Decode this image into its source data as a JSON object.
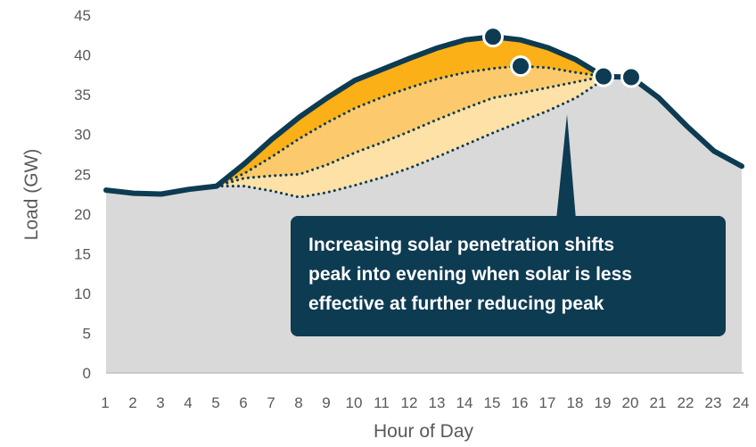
{
  "chart_data": {
    "type": "area",
    "xlabel": "Hour of Day",
    "ylabel": "Load (GW)",
    "ylim": [
      0,
      45
    ],
    "yticks": [
      0,
      5,
      10,
      15,
      20,
      25,
      30,
      35,
      40,
      45
    ],
    "x": [
      1,
      2,
      3,
      4,
      5,
      6,
      7,
      8,
      9,
      10,
      11,
      12,
      13,
      14,
      15,
      16,
      17,
      18,
      19,
      20,
      21,
      22,
      23,
      24
    ],
    "series": [
      {
        "style": "solid-outline",
        "values": [
          23.0,
          22.6,
          22.5,
          23.1,
          23.5,
          26.3,
          29.4,
          32.2,
          34.6,
          36.8,
          38.2,
          39.6,
          40.9,
          41.9,
          42.3,
          41.9,
          40.9,
          39.4,
          37.3,
          37.2,
          34.6,
          31.1,
          27.9,
          26.0
        ]
      },
      {
        "style": "dotted",
        "x": [
          5,
          6,
          7,
          8,
          9,
          10,
          11,
          12,
          13,
          14,
          15,
          16,
          17,
          18,
          19
        ],
        "values": [
          23.5,
          25.1,
          27.2,
          29.5,
          31.5,
          33.3,
          34.7,
          35.9,
          37.0,
          37.8,
          38.3,
          38.6,
          38.4,
          37.8,
          37.3
        ]
      },
      {
        "style": "dotted",
        "x": [
          5,
          6,
          7,
          8,
          9,
          10,
          11,
          12,
          13,
          14,
          15,
          16,
          17,
          18,
          19
        ],
        "values": [
          23.5,
          24.5,
          24.8,
          25.0,
          26.2,
          27.7,
          29.0,
          30.4,
          31.9,
          33.3,
          34.6,
          35.2,
          35.9,
          36.6,
          37.3
        ]
      },
      {
        "style": "dotted",
        "x": [
          5,
          6,
          7,
          8,
          9,
          10,
          11,
          12,
          13,
          14,
          15,
          16,
          17,
          18,
          19
        ],
        "values": [
          23.5,
          23.5,
          22.9,
          22.1,
          22.7,
          23.6,
          24.6,
          25.8,
          27.2,
          28.7,
          30.2,
          31.6,
          33.0,
          34.6,
          36.9
        ]
      }
    ],
    "peak_markers": [
      {
        "x": 15,
        "y": 42.3
      },
      {
        "x": 16,
        "y": 38.6
      },
      {
        "x": 19,
        "y": 37.3
      },
      {
        "x": 20,
        "y": 37.2
      }
    ],
    "annotation": {
      "text": "Increasing solar penetration shifts peak into evening when solar is less effective at further reducing peak",
      "lines": [
        "Increasing solar penetration shifts",
        "peak into evening when solar is less",
        "effective at further reducing peak"
      ]
    },
    "colors": {
      "load_fill": "#d9d9d9",
      "load_line": "#0d3b52",
      "band_1": "#fbb017",
      "band_2": "#fcca6c",
      "band_3": "#fde1a6",
      "callout_bg": "#0d3b52",
      "tick_text": "#595959"
    },
    "grid": false,
    "legend": "none"
  }
}
